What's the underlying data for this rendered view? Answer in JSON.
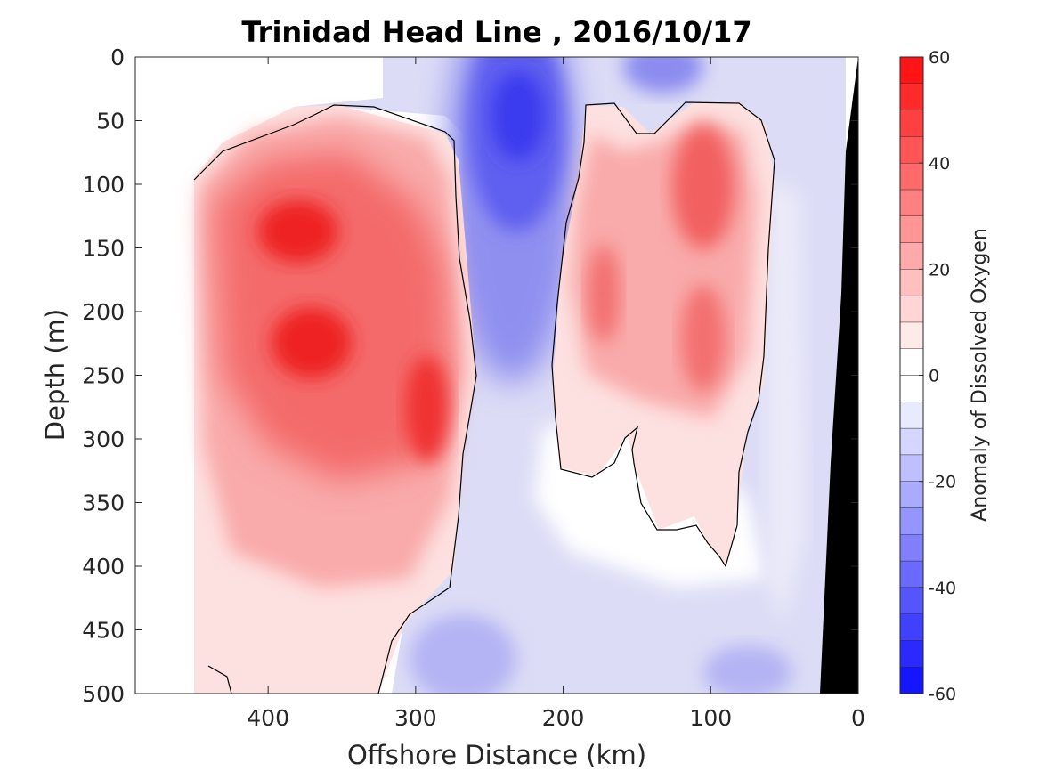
{
  "chart_data": {
    "type": "heatmap",
    "title": "Trinidad Head Line , 2016/10/17",
    "xlabel": "Offshore Distance (km)",
    "ylabel": "Depth (m)",
    "xlim": [
      490,
      0
    ],
    "ylim": [
      0,
      500
    ],
    "x_reversed": true,
    "y_reversed": true,
    "xticks": [
      400,
      300,
      200,
      100,
      0
    ],
    "yticks": [
      0,
      50,
      100,
      150,
      200,
      250,
      300,
      350,
      400,
      450,
      500
    ],
    "colorbar": {
      "label": "Anomaly of Dissolved Oxygen",
      "range": [
        -60,
        60
      ],
      "ticks": [
        60,
        40,
        20,
        0,
        -20,
        -40,
        -60
      ],
      "levels": [
        -60,
        -55,
        -50,
        -45,
        -40,
        -35,
        -30,
        -25,
        -20,
        -15,
        -10,
        -5,
        0,
        5,
        10,
        15,
        20,
        25,
        30,
        35,
        40,
        45,
        50,
        55,
        60
      ],
      "colormap": "blue-white-red"
    },
    "features": [
      {
        "kind": "positive-anomaly",
        "center_km": 370,
        "center_depth_m": 230,
        "peak": 50
      },
      {
        "kind": "positive-anomaly",
        "center_km": 385,
        "center_depth_m": 140,
        "peak": 50
      },
      {
        "kind": "positive-anomaly",
        "center_km": 105,
        "center_depth_m": 120,
        "peak": 35
      },
      {
        "kind": "negative-anomaly",
        "center_km": 230,
        "center_depth_m": 50,
        "peak": -45
      },
      {
        "kind": "bottom-topography",
        "color": "#000000"
      }
    ],
    "colors": {
      "positive": "#ff0000",
      "negative": "#0000ff",
      "zero": "#ffffff",
      "topography": "#000000"
    }
  }
}
